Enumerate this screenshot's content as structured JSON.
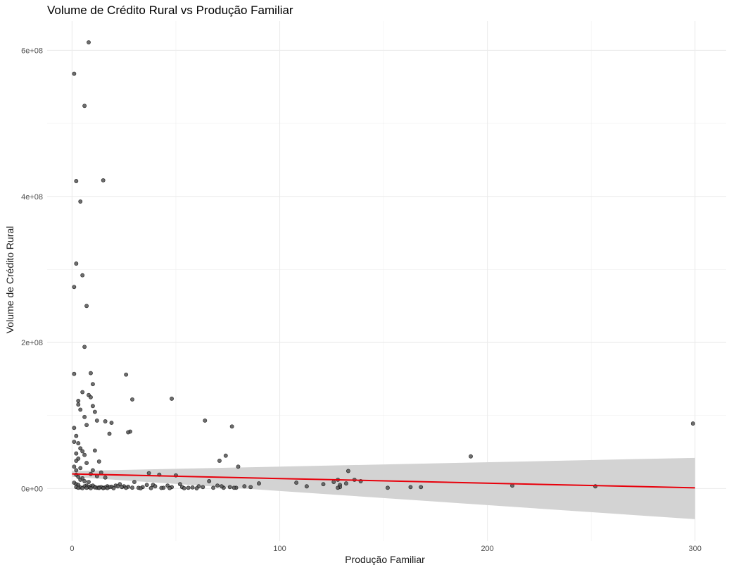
{
  "chart_data": {
    "type": "scatter",
    "title": "Volume de Crédito Rural vs Produção Familiar",
    "xlabel": "Produção Familiar",
    "ylabel": "Volume de Crédito Rural",
    "xlim": [
      -12,
      315
    ],
    "ylim": [
      -72000000,
      640000000
    ],
    "x_ticks": [
      0,
      100,
      200,
      300
    ],
    "x_tick_labels": [
      "0",
      "100",
      "200",
      "300"
    ],
    "y_ticks": [
      0,
      200000000,
      400000000,
      600000000
    ],
    "y_tick_labels": [
      "0e+00",
      "2e+08",
      "4e+08",
      "6e+08"
    ],
    "grid": true,
    "point_color": "#555555",
    "trend": {
      "method": "linear regression",
      "color": "#e8000b",
      "band_color": "#d3d3d3",
      "x": [
        0,
        300
      ],
      "y": [
        20000000,
        1000000
      ],
      "band_lower": [
        16000000,
        -42000000
      ],
      "band_upper": [
        24000000,
        42000000
      ]
    },
    "points": {
      "x": [
        8,
        1,
        6,
        2,
        15,
        4,
        2,
        5,
        1,
        7,
        6,
        1,
        9,
        26,
        29,
        48,
        10,
        5,
        3,
        3,
        4,
        8,
        9,
        10,
        11,
        6,
        7,
        12,
        16,
        18,
        1,
        2,
        3,
        4,
        2,
        1,
        5,
        6,
        3,
        2,
        7,
        1,
        4,
        2,
        11,
        13,
        10,
        9,
        14,
        12,
        16,
        28,
        27,
        19,
        64,
        77,
        74,
        71,
        80,
        299,
        192,
        133,
        128,
        129,
        139,
        129,
        108,
        113,
        121,
        126,
        128,
        132,
        136,
        152,
        163,
        168,
        212,
        252,
        2,
        3,
        5,
        4,
        6,
        8,
        1,
        2,
        3,
        7,
        9,
        11,
        13,
        15,
        17,
        19,
        21,
        23,
        25,
        30,
        34,
        37,
        39,
        42,
        46,
        50,
        53,
        56,
        61,
        66,
        70,
        73,
        76,
        79,
        83,
        90,
        2,
        4,
        6,
        8,
        10,
        12,
        14,
        16,
        18,
        22,
        24,
        27,
        32,
        36,
        40,
        44,
        48,
        52,
        58,
        63,
        68,
        72,
        78,
        86,
        3,
        5,
        7,
        9,
        11,
        13,
        15,
        17,
        20,
        26,
        29,
        33,
        38,
        43,
        47,
        54,
        60
      ],
      "y": [
        611000000,
        568000000,
        524000000,
        421000000,
        422000000,
        393000000,
        308000000,
        292000000,
        276000000,
        250000000,
        194000000,
        157000000,
        158000000,
        156000000,
        122000000,
        123000000,
        143000000,
        132000000,
        120000000,
        115000000,
        108000000,
        128000000,
        125000000,
        113000000,
        105000000,
        98000000,
        87000000,
        93000000,
        92000000,
        75000000,
        83000000,
        72000000,
        62000000,
        55000000,
        48000000,
        64000000,
        51000000,
        46000000,
        41000000,
        38000000,
        35000000,
        30000000,
        28000000,
        25000000,
        52000000,
        37000000,
        25000000,
        20000000,
        22000000,
        17000000,
        15000000,
        78000000,
        77000000,
        90000000,
        93000000,
        85000000,
        45000000,
        38000000,
        30000000,
        89000000,
        44000000,
        24000000,
        12000000,
        5000000,
        10000000,
        2000000,
        8000000,
        3000000,
        6000000,
        9000000,
        1000000,
        7000000,
        12000000,
        1000000,
        2000000,
        2000000,
        4000000,
        3000000,
        19000000,
        16000000,
        14000000,
        12000000,
        10000000,
        9000000,
        8000000,
        6000000,
        5000000,
        4000000,
        3000000,
        2000000,
        1500000,
        1000000,
        3000000,
        2500000,
        4000000,
        6000000,
        3000000,
        9000000,
        2000000,
        21000000,
        5000000,
        19000000,
        4000000,
        18000000,
        2000000,
        1000000,
        3000000,
        10000000,
        4000000,
        1000000,
        2000000,
        1000000,
        3000000,
        7000000,
        2000000,
        1500000,
        3000000,
        2000000,
        4000000,
        1000000,
        2000000,
        1500000,
        2000000,
        3000000,
        2000000,
        2500000,
        1000000,
        5000000,
        3000000,
        1000000,
        2000000,
        6000000,
        1500000,
        2000000,
        1000000,
        3000000,
        1000000,
        2000000,
        1000000,
        500000,
        1000000,
        500000,
        1500000,
        800000,
        600000,
        700000,
        400000,
        900000,
        1200000,
        300000,
        500000,
        800000,
        600000,
        400000,
        300000
      ]
    }
  }
}
